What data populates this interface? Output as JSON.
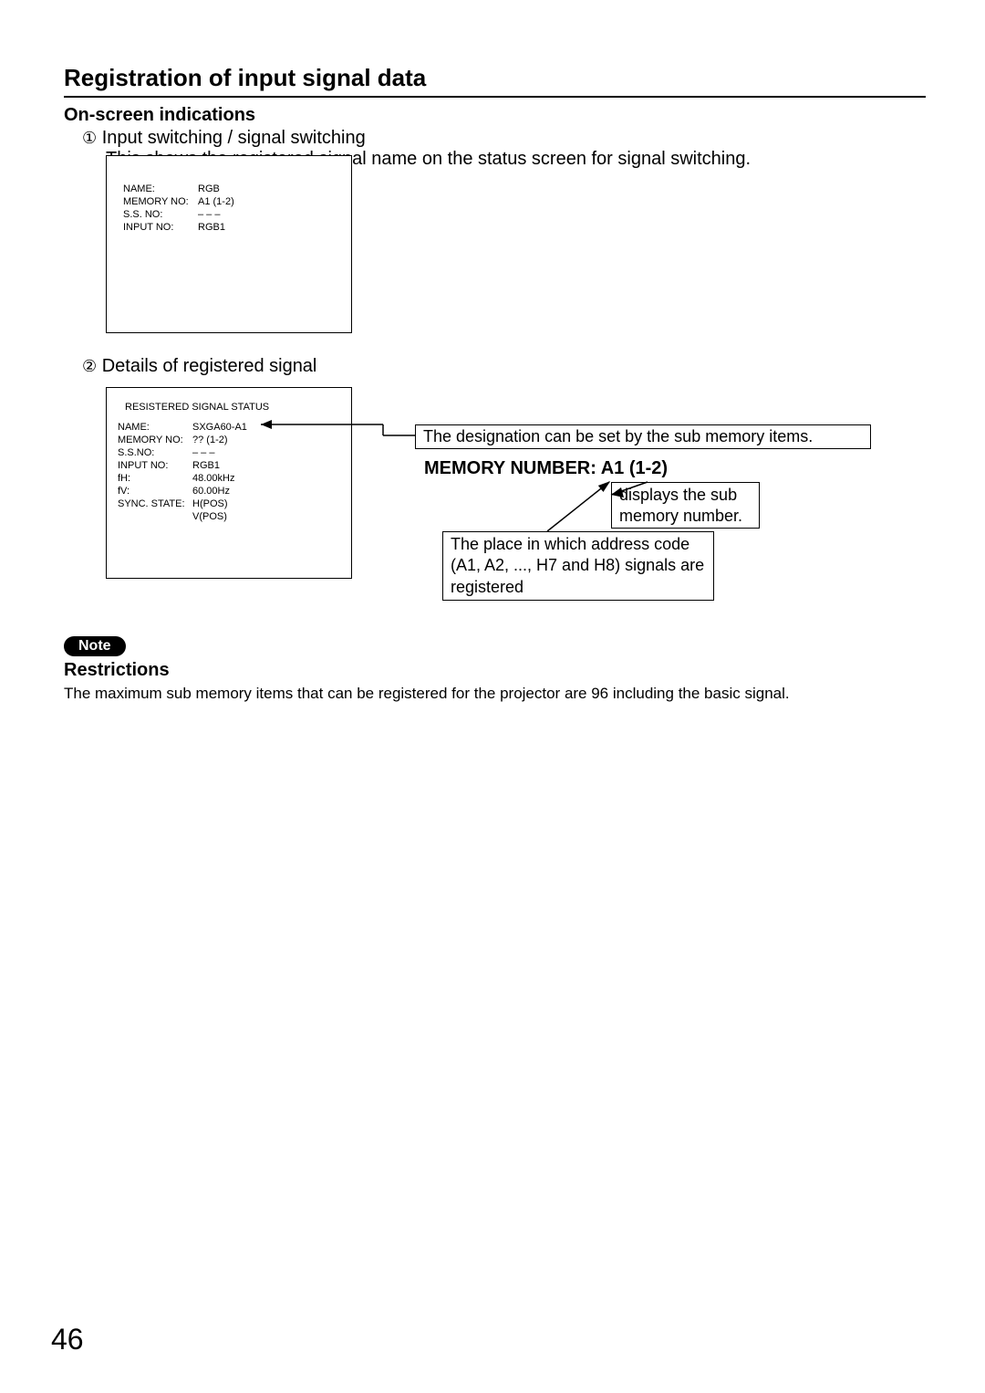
{
  "title": "Registration of input signal data",
  "section1": {
    "heading": "On-screen indications",
    "item1_num": "①",
    "item1_label": "Input switching / signal switching",
    "item1_desc": "This shows the registered signal name on the status screen for signal switching.",
    "item2_num": "②",
    "item2_label": "Details of registered signal"
  },
  "box1": {
    "rows": [
      [
        "NAME:",
        "RGB"
      ],
      [
        "MEMORY NO:",
        "A1 (1-2)"
      ],
      [
        "S.S. NO:",
        "– – –"
      ],
      [
        "INPUT NO:",
        "RGB1"
      ]
    ]
  },
  "box2": {
    "header": "RESISTERED SIGNAL STATUS",
    "rows": [
      [
        "NAME:",
        "SXGA60-A1"
      ],
      [
        "MEMORY NO:",
        "?? (1-2)"
      ],
      [
        "S.S.NO:",
        "– – –"
      ],
      [
        "INPUT NO:",
        "RGB1"
      ],
      [
        "fH:",
        "48.00kHz"
      ],
      [
        "fV:",
        "60.00Hz"
      ],
      [
        "SYNC. STATE:",
        "H(POS)"
      ],
      [
        "",
        "V(POS)"
      ]
    ]
  },
  "callouts": {
    "designation": "The designation can be set by the sub memory items.",
    "memory_number_label": "MEMORY NUMBER: A1 (1-2)",
    "displays_sub": "displays the sub memory number.",
    "address_code": "The place in which address code (A1, A2, ..., H7 and H8) signals are registered"
  },
  "note": {
    "pill": "Note",
    "heading": "Restrictions",
    "text": "The maximum sub memory items that can be registered for the projector are 96 including the basic signal."
  },
  "page_number": "46"
}
